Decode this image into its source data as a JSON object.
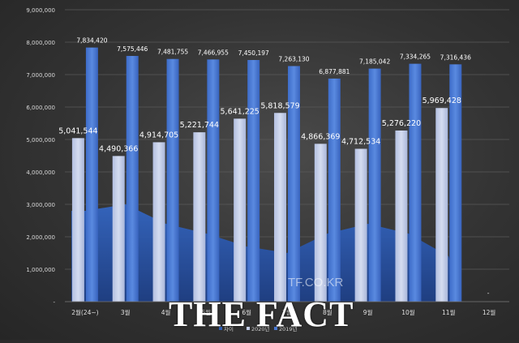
{
  "chart_data": {
    "type": "bar",
    "title": "",
    "xlabel": "",
    "ylabel": "",
    "ylim": [
      0,
      9000000
    ],
    "y_ticks": [
      "-",
      "1,000,000",
      "2,000,000",
      "3,000,000",
      "4,000,000",
      "5,000,000",
      "6,000,000",
      "7,000,000",
      "8,000,000",
      "9,000,000"
    ],
    "categories": [
      "2월(24~)",
      "3월",
      "4월",
      "5월",
      "6월",
      "7월",
      "8월",
      "9월",
      "10월",
      "11월",
      "12월"
    ],
    "series": [
      {
        "name": "차이",
        "type": "area",
        "values": [
          2800000,
          3000000,
          2400000,
          2100000,
          1700000,
          1500000,
          2100000,
          2400000,
          2100000,
          1400000,
          null
        ]
      },
      {
        "name": "2020년",
        "type": "bar",
        "values": [
          5041544,
          4490366,
          4914705,
          5221744,
          5641225,
          5818579,
          4866369,
          4712534,
          5276220,
          5969428,
          null
        ],
        "labels": [
          "5,041,544",
          "4,490,366",
          "4,914,705",
          "5,221,744",
          "5,641,225",
          "5,818,579",
          "4,866,369",
          "4,712,534",
          "5,276,220",
          "5,969,428",
          ""
        ]
      },
      {
        "name": "2019년",
        "type": "bar",
        "values": [
          7834420,
          7575446,
          7481755,
          7466955,
          7450197,
          7263130,
          6877881,
          7185042,
          7334265,
          7316436,
          null
        ],
        "labels": [
          "7,834,420",
          "7,575,446",
          "7,481,755",
          "7,466,955",
          "7,450,197",
          "7,263,130",
          "6,877,881",
          "7,185,042",
          "7,334,265",
          "7,316,436",
          ""
        ]
      }
    ],
    "extra_label": "-",
    "grid": true,
    "legend_position": "bottom",
    "colors": {
      "area": "#2f5fb5",
      "bar2020": "#c3cde8",
      "bar2019": "#4a7ad6",
      "label2020": "#ffffff",
      "label2019": "#ffffff"
    }
  },
  "watermark": {
    "small": "TF.CO.KR",
    "big": "THE FACT"
  }
}
